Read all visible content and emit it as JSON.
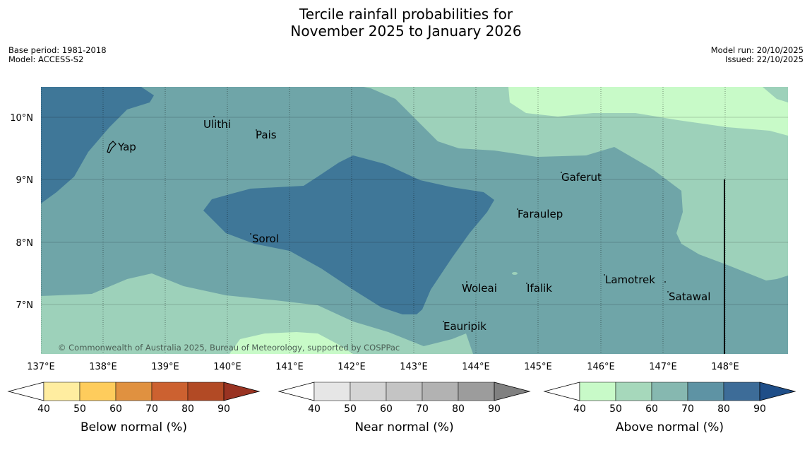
{
  "title": {
    "line1": "Tercile rainfall probabilities for",
    "line2": "November 2025 to January 2026"
  },
  "meta": {
    "base_period": "Base period: 1981-2018",
    "model": "Model: ACCESS-S2",
    "model_run": "Model run: 20/10/2025",
    "issued": "Issued: 22/10/2025"
  },
  "copyright": "© Commonwealth of Australia 2025, Bureau of Meteorology, supported by COSPPac",
  "lon_labels": [
    "137°E",
    "138°E",
    "139°E",
    "140°E",
    "141°E",
    "142°E",
    "143°E",
    "144°E",
    "145°E",
    "146°E",
    "147°E",
    "148°E"
  ],
  "lat_labels": [
    "10°N",
    "9°N",
    "8°N",
    "7°N"
  ],
  "places": [
    "Ulithi",
    "Pais",
    "Yap",
    "Gaferut",
    "Faraulep",
    "Sorol",
    "Lamotrek",
    "Woleai",
    "Ifalik",
    "Satawal",
    "Eauripik"
  ],
  "legends": [
    {
      "title": "Below normal (%)",
      "ticks": [
        "40",
        "50",
        "60",
        "70",
        "80",
        "90"
      ],
      "colors": [
        "#ffffff",
        "#ffeda0",
        "#fecc5c",
        "#e09140",
        "#cc6130",
        "#b24a25",
        "#993322"
      ]
    },
    {
      "title": "Near normal (%)",
      "ticks": [
        "40",
        "50",
        "60",
        "70",
        "80",
        "90"
      ],
      "colors": [
        "#ffffff",
        "#e6e6e6",
        "#d4d4d4",
        "#c4c4c4",
        "#b2b2b2",
        "#9c9c9c",
        "#808080"
      ]
    },
    {
      "title": "Above normal (%)",
      "ticks": [
        "40",
        "50",
        "60",
        "70",
        "80",
        "90"
      ],
      "colors": [
        "#ffffff",
        "#c8fac8",
        "#a6d8bb",
        "#86b8b0",
        "#5e93a4",
        "#3d6c98",
        "#1f4e88"
      ]
    }
  ],
  "map_colors": {
    "above_40_50": "#c8fac8",
    "above_50_60": "#9dd1ba",
    "above_60_70": "#6fa5a8",
    "above_70_80": "#3f7798",
    "grid": "#000000"
  }
}
